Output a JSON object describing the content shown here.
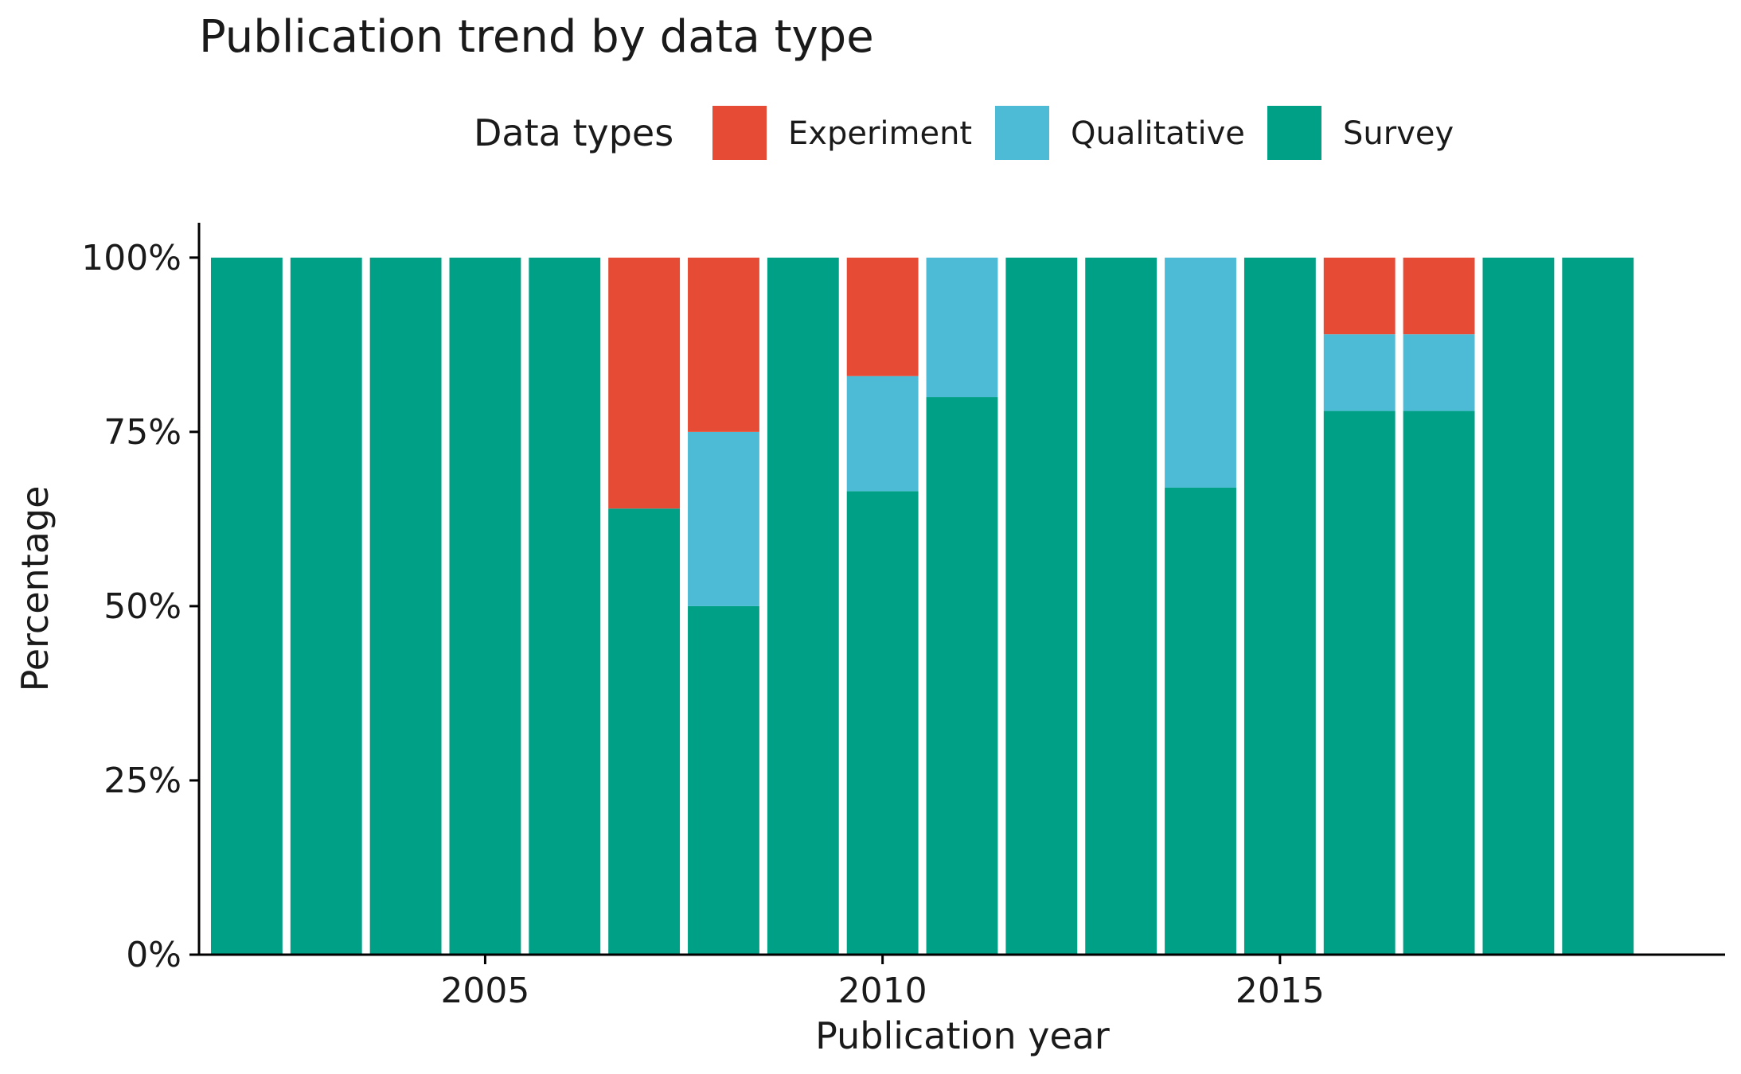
{
  "chart_data": {
    "type": "bar",
    "stacked": true,
    "title": "Publication trend by data type",
    "xlabel": "Publication year",
    "ylabel": "Percentage",
    "x_ticks": [
      2005,
      2010,
      2015
    ],
    "y_ticks": [
      "0%",
      "25%",
      "50%",
      "75%",
      "100%"
    ],
    "xlim": [
      2001.4,
      2020.6
    ],
    "ylim": [
      0,
      1.05
    ],
    "legend": {
      "title": "Data types",
      "position": "top"
    },
    "categories": [
      2002,
      2003,
      2004,
      2005,
      2006,
      2007,
      2008,
      2009,
      2010,
      2011,
      2012,
      2013,
      2014,
      2015,
      2016,
      2017,
      2018,
      2019
    ],
    "series": [
      {
        "name": "Survey",
        "color": "#00A087",
        "values": [
          1,
          1,
          1,
          1,
          1,
          0.64,
          0.5,
          1,
          0.665,
          0.8,
          1,
          1,
          0.67,
          1,
          0.78,
          0.78,
          1,
          1
        ]
      },
      {
        "name": "Qualitative",
        "color": "#4DBBD5",
        "values": [
          0,
          0,
          0,
          0,
          0,
          0,
          0.25,
          0,
          0.165,
          0.2,
          0,
          0,
          0.33,
          0,
          0.11,
          0.11,
          0,
          0
        ]
      },
      {
        "name": "Experiment",
        "color": "#E64B35",
        "values": [
          0,
          0,
          0,
          0,
          0,
          0.36,
          0.25,
          0,
          0.17,
          0,
          0,
          0,
          0,
          0,
          0.11,
          0.11,
          0,
          0
        ]
      }
    ],
    "legend_order": [
      "Experiment",
      "Qualitative",
      "Survey"
    ],
    "grid": false
  }
}
